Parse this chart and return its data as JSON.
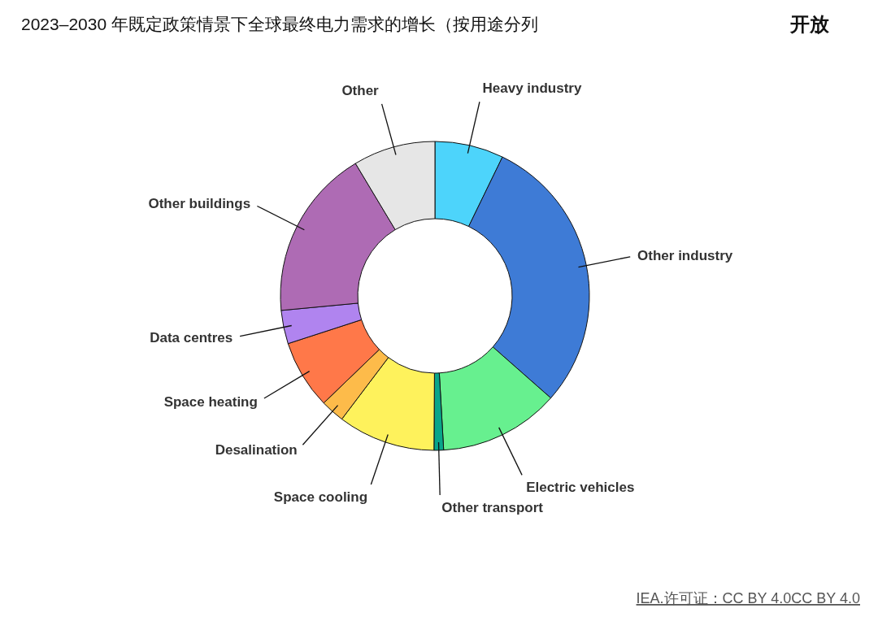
{
  "chart_data": {
    "type": "donut",
    "title": "2023–2030 年既定政策情景下全球最终电力需求的增长（按用途分列",
    "categories": [
      "Heavy industry",
      "Other industry",
      "Electric vehicles",
      "Other transport",
      "Space cooling",
      "Desalination",
      "Space heating",
      "Data centres",
      "Other buildings",
      "Other"
    ],
    "values": [
      7.2,
      29.3,
      12.6,
      1.0,
      10.2,
      2.5,
      7.2,
      3.5,
      17.9,
      8.6
    ],
    "colors": [
      "#4dd4fb",
      "#3e7bd6",
      "#67f08f",
      "#0aa58a",
      "#fef25c",
      "#fdbb4a",
      "#ff7849",
      "#b084ef",
      "#ae6bb4",
      "#e6e6e6"
    ],
    "annotations": [
      "开放",
      "IEA.许可证：CC BY 4.0CC BY 4.0"
    ]
  }
}
